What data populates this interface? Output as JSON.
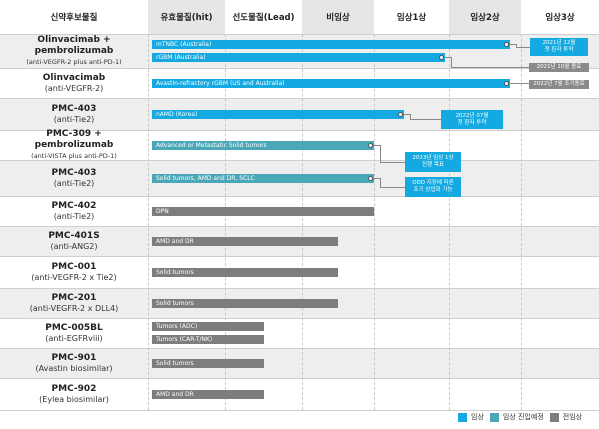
{
  "colors": {
    "clinical": "#14a9e1",
    "clinical_planned": "#4aa7b8",
    "preclinical": "#7d7d7d",
    "callout_blue": "#14a9e1",
    "callout_gray": "#8a8a8a"
  },
  "header": {
    "candidate": "신약후보물질",
    "stages": [
      "유효물질(hit)",
      "선도물질(Lead)",
      "비임상",
      "임상1상",
      "임상2상",
      "임상3상"
    ]
  },
  "legend": [
    {
      "label": "임상",
      "status": "clinical"
    },
    {
      "label": "임상 진입예정",
      "status": "clinical_planned"
    },
    {
      "label": "전임상",
      "status": "preclinical"
    }
  ],
  "chart_data": {
    "type": "table",
    "stages": [
      "유효물질(hit)",
      "선도물질(Lead)",
      "비임상",
      "임상1상",
      "임상2상",
      "임상3상"
    ],
    "rows": [
      {
        "name": "Olinvacimab +\npembrolizumab",
        "sub": "(anti-VEGFR-2 plus anti-PD-1)",
        "small": true,
        "bars": [
          {
            "label": "mTNBC (Australia)",
            "status": "clinical",
            "end": 4.85
          },
          {
            "label": "rGBM (Australia)",
            "status": "clinical",
            "end": 3.95
          }
        ]
      },
      {
        "name": "Olinvacimab",
        "sub": "(anti-VEGFR-2)",
        "bars": [
          {
            "label": "Avastin-refractory rGBM (US and Australia)",
            "status": "clinical",
            "end": 4.85
          }
        ]
      },
      {
        "name": "PMC-403",
        "sub": "(anti-Tie2)",
        "bars": [
          {
            "label": "nAMD (Korea)",
            "status": "clinical",
            "end": 3.4
          }
        ]
      },
      {
        "name": "PMC-309 +\npembrolizumab",
        "sub": "(anti-VISTA plus anti-PD-1)",
        "small": true,
        "bars": [
          {
            "label": "Advanced or Metastatic Solid tumors",
            "status": "clinical_planned",
            "end": 3.0
          }
        ]
      },
      {
        "name": "PMC-403",
        "sub": "(anti-Tie2)",
        "bars": [
          {
            "label": "Solid tumors, AMD and DR, SCLC",
            "status": "clinical_planned",
            "end": 3.0
          }
        ]
      },
      {
        "name": "PMC-402",
        "sub": "(anti-Tie2)",
        "bars": [
          {
            "label": "DPN",
            "status": "preclinical",
            "end": 3.0
          }
        ]
      },
      {
        "name": "PMC-401S",
        "sub": "(anti-ANG2)",
        "bars": [
          {
            "label": "AMD and DR",
            "status": "preclinical",
            "end": 2.5
          }
        ]
      },
      {
        "name": "PMC-001",
        "sub": "(anti-VEGFR-2 x Tie2)",
        "bars": [
          {
            "label": "Solid tumors",
            "status": "preclinical",
            "end": 2.5
          }
        ]
      },
      {
        "name": "PMC-201",
        "sub": "(anti-VEGFR-2 x DLL4)",
        "bars": [
          {
            "label": "Solid tumors",
            "status": "preclinical",
            "end": 2.5
          }
        ]
      },
      {
        "name": "PMC-005BL",
        "sub": "(anti-EGFRviii)",
        "bars": [
          {
            "label": "Tumors (ADC)",
            "status": "preclinical",
            "end": 1.5
          },
          {
            "label": "Tumors (CAR-T/NK)",
            "status": "preclinical",
            "end": 1.5
          }
        ]
      },
      {
        "name": "PMC-901",
        "sub": "(Avastin biosimilar)",
        "bars": [
          {
            "label": "Solid tumors",
            "status": "preclinical",
            "end": 1.5
          }
        ]
      },
      {
        "name": "PMC-902",
        "sub": "(Eylea biosimilar)",
        "bars": [
          {
            "label": "AMD and DR",
            "status": "preclinical",
            "end": 1.5
          }
        ]
      }
    ],
    "annotations": [
      {
        "row": 0,
        "bar": 0,
        "lines": [
          "2021년 12월",
          "첫 환자 투약"
        ],
        "style": "blue"
      },
      {
        "row": 0,
        "bar": 1,
        "lines": [
          "2021년 10월 종료"
        ],
        "style": "gray"
      },
      {
        "row": 1,
        "bar": 0,
        "lines": [
          "2022년 7월 조기종료"
        ],
        "style": "gray"
      },
      {
        "row": 2,
        "bar": 0,
        "lines": [
          "2022년 07월",
          "첫 환자 투약"
        ],
        "style": "blue"
      },
      {
        "row": 3,
        "bar": 0,
        "lines": [
          "2023년 임상 1상",
          "진행 목표"
        ],
        "style": "blue"
      },
      {
        "row": 4,
        "bar": 0,
        "lines": [
          "ODD 지정에 따른",
          "조기 상업화 가능"
        ],
        "style": "blue"
      }
    ]
  }
}
